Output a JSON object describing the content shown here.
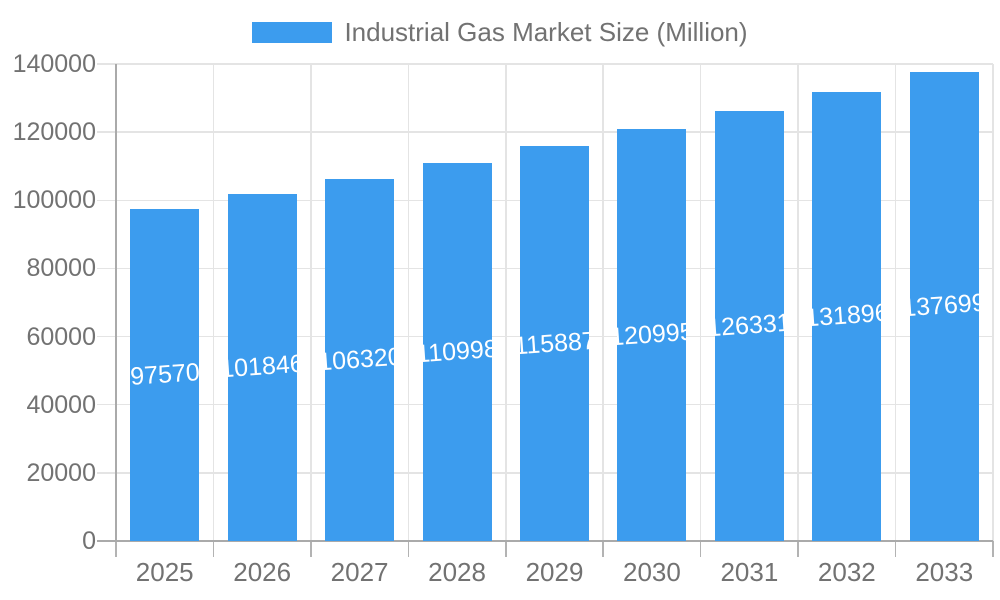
{
  "legend": {
    "label": "Industrial Gas Market Size (Million)"
  },
  "colors": {
    "bar": "#3c9cee",
    "bar_label": "#ffffff",
    "grid": "#e4e4e4",
    "axis": "#aaaaaa",
    "tick": "#b3b3b3",
    "text": "#727272"
  },
  "chart_data": {
    "type": "bar",
    "title": "Industrial Gas Market Size (Million)",
    "categories": [
      "2025",
      "2026",
      "2027",
      "2028",
      "2029",
      "2030",
      "2031",
      "2032",
      "2033"
    ],
    "values": [
      97570,
      101846,
      106320,
      110998,
      115887,
      120995,
      126331,
      131896,
      137699
    ],
    "series": [
      {
        "name": "Industrial Gas Market Size (Million)",
        "values": [
          97570,
          101846,
          106320,
          110998,
          115887,
          120995,
          126331,
          131896,
          137699
        ]
      }
    ],
    "xlabel": "",
    "ylabel": "",
    "ylim": [
      0,
      140000
    ],
    "yticks": [
      0,
      20000,
      40000,
      60000,
      80000,
      100000,
      120000,
      140000
    ],
    "grid": true,
    "legend_position": "top",
    "bar_labels_inside": true
  }
}
